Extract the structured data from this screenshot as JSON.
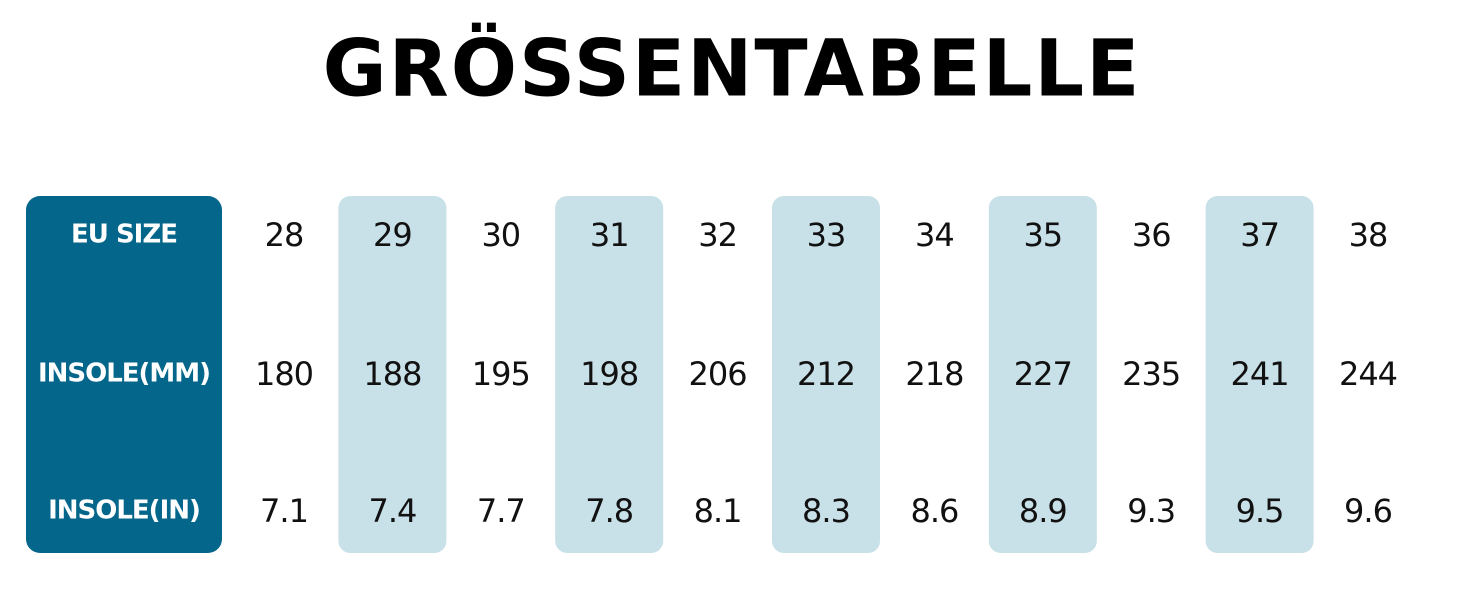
{
  "title": "GRÖSSENTABELLE",
  "table": {
    "row_headers": [
      "EU SIZE",
      "INSOLE(MM)",
      "INSOLE(IN)"
    ],
    "rows": [
      [
        28,
        29,
        30,
        31,
        32,
        33,
        34,
        35,
        36,
        37,
        38
      ],
      [
        180,
        188,
        195,
        198,
        206,
        212,
        218,
        227,
        235,
        241,
        244
      ],
      [
        7.1,
        7.4,
        7.7,
        7.8,
        8.1,
        8.3,
        8.6,
        8.9,
        9.3,
        9.5,
        9.6
      ]
    ]
  }
}
